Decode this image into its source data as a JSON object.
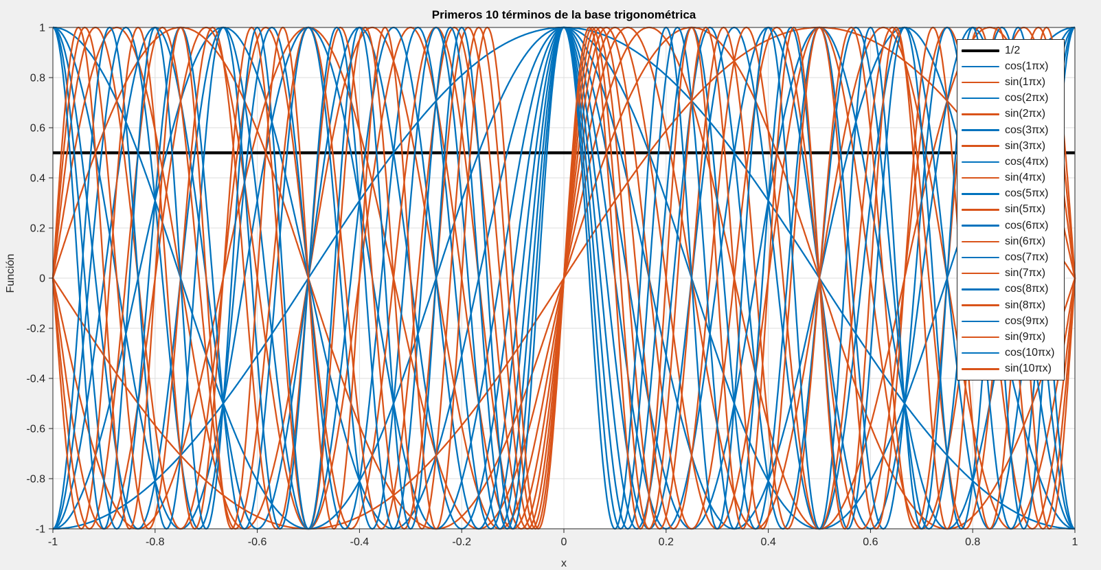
{
  "figure": {
    "background": "#f0f0f0"
  },
  "chart_data": {
    "type": "line",
    "title": "Primeros 10 términos de la base trigonométrica",
    "xlabel": "x",
    "ylabel": "Función",
    "xlim": [
      -1,
      1
    ],
    "ylim": [
      -1,
      1
    ],
    "grid": true,
    "x_ticks": [
      -1,
      -0.8,
      -0.6,
      -0.4,
      -0.2,
      0,
      0.2,
      0.4,
      0.6,
      0.8,
      1
    ],
    "x_tick_labels": [
      "-1",
      "-0.8",
      "-0.6",
      "-0.4",
      "-0.2",
      "0",
      "0.2",
      "0.4",
      "0.6",
      "0.8",
      "1"
    ],
    "y_ticks": [
      -1,
      -0.8,
      -0.6,
      -0.4,
      -0.2,
      0,
      0.2,
      0.4,
      0.6,
      0.8,
      1
    ],
    "y_tick_labels": [
      "-1",
      "-0.8",
      "-0.6",
      "-0.4",
      "-0.2",
      "0",
      "0.2",
      "0.4",
      "0.6",
      "0.8",
      "1"
    ],
    "colors": {
      "cos": "#0072BD",
      "sin": "#D95319",
      "constant": "#000000",
      "axis": "#262626",
      "grid": "#dedede",
      "plot_background": "#ffffff"
    },
    "legend": {
      "position": "northeast",
      "background": "#ffffff",
      "border_color": "#262626"
    },
    "series": [
      {
        "name": "1/2",
        "fn": "const",
        "value": 0.5,
        "color": "#000000",
        "width": 4.2
      },
      {
        "name": "cos(1πx)",
        "fn": "cos",
        "n": 1,
        "color": "#0072BD",
        "width": 2.3
      },
      {
        "name": "sin(1πx)",
        "fn": "sin",
        "n": 1,
        "color": "#D95319",
        "width": 2.3
      },
      {
        "name": "cos(2πx)",
        "fn": "cos",
        "n": 2,
        "color": "#0072BD",
        "width": 2.3
      },
      {
        "name": "sin(2πx)",
        "fn": "sin",
        "n": 2,
        "color": "#D95319",
        "width": 2.3
      },
      {
        "name": "cos(3πx)",
        "fn": "cos",
        "n": 3,
        "color": "#0072BD",
        "width": 2.3
      },
      {
        "name": "sin(3πx)",
        "fn": "sin",
        "n": 3,
        "color": "#D95319",
        "width": 2.3
      },
      {
        "name": "cos(4πx)",
        "fn": "cos",
        "n": 4,
        "color": "#0072BD",
        "width": 2.3
      },
      {
        "name": "sin(4πx)",
        "fn": "sin",
        "n": 4,
        "color": "#D95319",
        "width": 2.3
      },
      {
        "name": "cos(5πx)",
        "fn": "cos",
        "n": 5,
        "color": "#0072BD",
        "width": 2.3
      },
      {
        "name": "sin(5πx)",
        "fn": "sin",
        "n": 5,
        "color": "#D95319",
        "width": 2.3
      },
      {
        "name": "cos(6πx)",
        "fn": "cos",
        "n": 6,
        "color": "#0072BD",
        "width": 2.3
      },
      {
        "name": "sin(6πx)",
        "fn": "sin",
        "n": 6,
        "color": "#D95319",
        "width": 2.3
      },
      {
        "name": "cos(7πx)",
        "fn": "cos",
        "n": 7,
        "color": "#0072BD",
        "width": 2.3
      },
      {
        "name": "sin(7πx)",
        "fn": "sin",
        "n": 7,
        "color": "#D95319",
        "width": 2.3
      },
      {
        "name": "cos(8πx)",
        "fn": "cos",
        "n": 8,
        "color": "#0072BD",
        "width": 2.3
      },
      {
        "name": "sin(8πx)",
        "fn": "sin",
        "n": 8,
        "color": "#D95319",
        "width": 2.3
      },
      {
        "name": "cos(9πx)",
        "fn": "cos",
        "n": 9,
        "color": "#0072BD",
        "width": 2.3
      },
      {
        "name": "sin(9πx)",
        "fn": "sin",
        "n": 9,
        "color": "#D95319",
        "width": 2.3
      },
      {
        "name": "cos(10πx)",
        "fn": "cos",
        "n": 10,
        "color": "#0072BD",
        "width": 2.3
      },
      {
        "name": "sin(10πx)",
        "fn": "sin",
        "n": 10,
        "color": "#D95319",
        "width": 2.3
      }
    ]
  }
}
